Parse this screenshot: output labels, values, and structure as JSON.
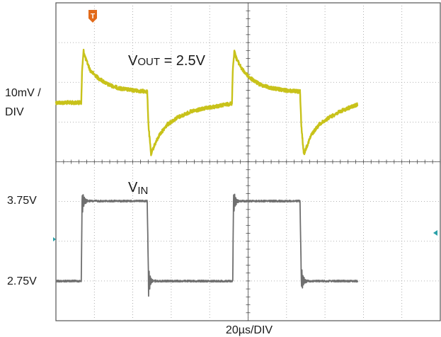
{
  "chart_data": {
    "type": "line",
    "title": "",
    "xlabel": "20µs/DIV",
    "x_unit": "µs",
    "xlim": [
      0,
      200
    ],
    "grid": true,
    "trigger_marker": "T",
    "channel_labels": {
      "vout_scale_line1": "10mV /",
      "vout_scale_line2": "DIV",
      "vin_high": "3.75V",
      "vin_low": "2.75V"
    },
    "annotations": {
      "vout": "V",
      "vout_sub": "OUT",
      "vout_rest": " = 2.5V",
      "vin": "V",
      "vin_sub": "IN"
    },
    "series": [
      {
        "name": "VOUT",
        "color": "#c8c21a",
        "y_unit": "mV (AC, relative to 2.5V)",
        "points": [
          [
            0,
            0
          ],
          [
            13.2,
            0
          ],
          [
            13.6,
            8
          ],
          [
            14.4,
            13
          ],
          [
            15.5,
            11
          ],
          [
            18,
            8
          ],
          [
            22,
            6.2
          ],
          [
            27,
            4.6
          ],
          [
            33,
            3.6
          ],
          [
            40,
            3.1
          ],
          [
            47,
            2.8
          ],
          [
            47.5,
            2.8
          ],
          [
            48.2,
            -6
          ],
          [
            49.5,
            -13
          ],
          [
            51,
            -11
          ],
          [
            54,
            -8
          ],
          [
            58,
            -5.5
          ],
          [
            63,
            -3.8
          ],
          [
            70,
            -2.3
          ],
          [
            77,
            -1.5
          ],
          [
            85,
            -0.8
          ],
          [
            91.6,
            -0.2
          ],
          [
            92,
            8
          ],
          [
            92.8,
            13
          ],
          [
            94,
            11
          ],
          [
            97,
            8.3
          ],
          [
            101,
            6.2
          ],
          [
            106,
            4.6
          ],
          [
            112,
            3.7
          ],
          [
            119,
            3.1
          ],
          [
            126,
            2.8
          ],
          [
            127,
            2.8
          ],
          [
            127.7,
            -6
          ],
          [
            129,
            -13
          ],
          [
            130.5,
            -11
          ],
          [
            133,
            -8
          ],
          [
            137,
            -5.5
          ],
          [
            142,
            -3.8
          ],
          [
            148,
            -2.2
          ],
          [
            153,
            -1.2
          ],
          [
            157,
            -0.5
          ]
        ]
      },
      {
        "name": "VIN",
        "color": "#6f6f6f",
        "y_unit": "V",
        "points": [
          [
            0,
            2.75
          ],
          [
            13.2,
            2.75
          ],
          [
            13.6,
            3.75
          ],
          [
            47.5,
            3.75
          ],
          [
            48.2,
            2.75
          ],
          [
            92,
            2.75
          ],
          [
            92.4,
            3.75
          ],
          [
            127,
            3.75
          ],
          [
            127.7,
            2.75
          ],
          [
            157,
            2.75
          ]
        ]
      }
    ]
  }
}
